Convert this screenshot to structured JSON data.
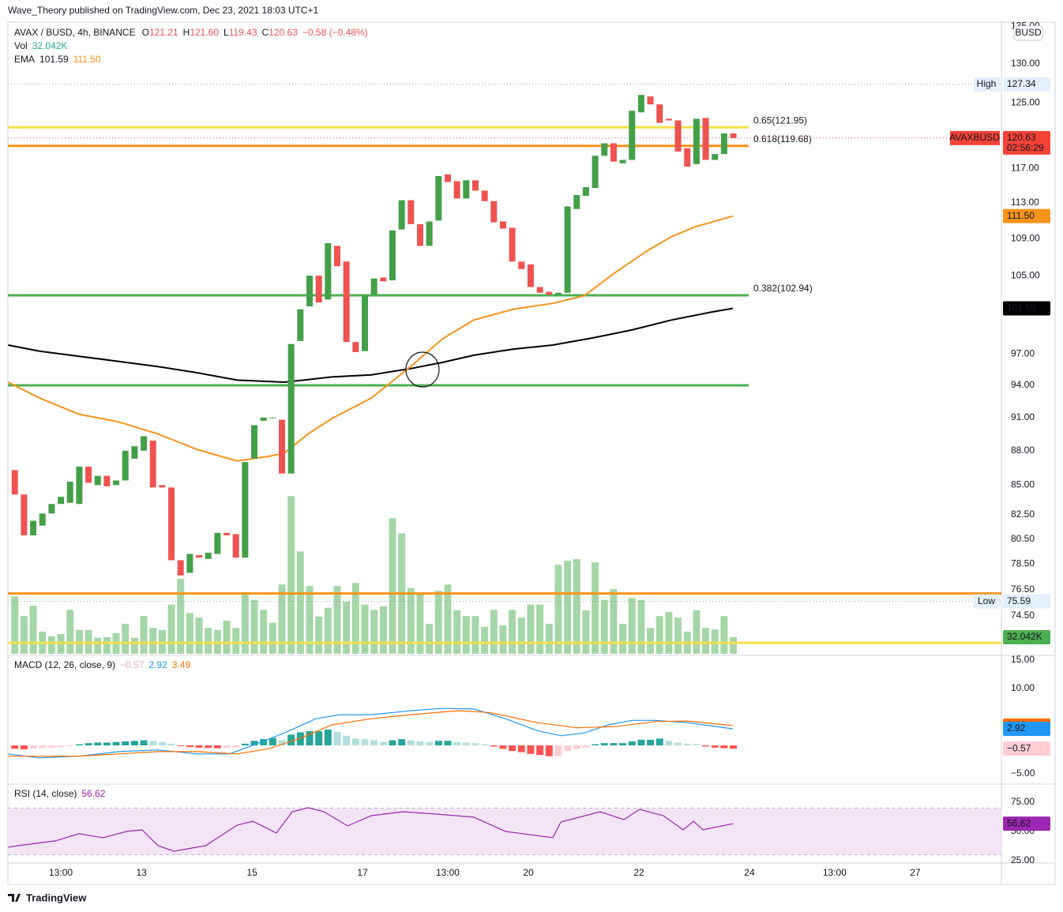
{
  "header": {
    "publisher": "Wave_Theory published on TradingView.com, Dec 23, 2021 18:03 UTC+1",
    "currency": "BUSD",
    "footer": "TradingView"
  },
  "chart_data": [
    {
      "type": "candlestick",
      "legend": {
        "symbol": "AVAX / BUSD, 4h, BINANCE",
        "ohlc": [
          {
            "key": "O",
            "value": "121.21"
          },
          {
            "key": "H",
            "value": "121.60"
          },
          {
            "key": "L",
            "value": "119.43"
          },
          {
            "key": "C",
            "value": "120.63"
          }
        ],
        "change": "−0.58 (−0.48%)"
      },
      "log_scale": true,
      "grid": false,
      "up_color": "#43a047",
      "down_color": "#ef5350",
      "xlim": [
        -10,
        421.4
      ],
      "xticks": [
        {
          "value": 13,
          "label": "13:00"
        },
        {
          "value": 48,
          "label": "13"
        },
        {
          "value": 96,
          "label": "15"
        },
        {
          "value": 144,
          "label": "17"
        },
        {
          "value": 181,
          "label": "13:00"
        },
        {
          "value": 216,
          "label": "20"
        },
        {
          "value": 264,
          "label": "22"
        },
        {
          "value": 312,
          "label": "24"
        },
        {
          "value": 349,
          "label": "13:00"
        },
        {
          "value": 384,
          "label": "27"
        }
      ],
      "ylim": [
        71.7,
        135.6
      ],
      "yticks": [
        {
          "value": 135,
          "label": "135.00"
        },
        {
          "value": 130,
          "label": "130.00"
        },
        {
          "value": 125,
          "label": "125.00"
        },
        {
          "value": 117,
          "label": "117.00"
        },
        {
          "value": 113,
          "label": "113.00"
        },
        {
          "value": 109,
          "label": "109.00"
        },
        {
          "value": 105,
          "label": "105.00"
        },
        {
          "value": 97,
          "label": "97.00"
        },
        {
          "value": 94,
          "label": "94.00"
        },
        {
          "value": 91,
          "label": "91.00"
        },
        {
          "value": 88,
          "label": "88.00"
        },
        {
          "value": 85,
          "label": "85.00"
        },
        {
          "value": 82.5,
          "label": "82.50"
        },
        {
          "value": 80.5,
          "label": "80.50"
        },
        {
          "value": 78.5,
          "label": "78.50"
        },
        {
          "value": 76.5,
          "label": "76.50"
        },
        {
          "value": 74.5,
          "label": "74.50"
        }
      ],
      "x": [
        -7,
        -3,
        1,
        5,
        9,
        13,
        17,
        21,
        25,
        29,
        33,
        37,
        41,
        45,
        49,
        53,
        57,
        61,
        65,
        69,
        73,
        77,
        81,
        85,
        89,
        93,
        97,
        101,
        105,
        109,
        113,
        117,
        121,
        125,
        129,
        133,
        137,
        141,
        145,
        149,
        153,
        157,
        161,
        165,
        169,
        173,
        177,
        181,
        185,
        189,
        193,
        197,
        201,
        205,
        209,
        213,
        217,
        221,
        225,
        229,
        233,
        237,
        241,
        245,
        249,
        253,
        257,
        261,
        265,
        269,
        273,
        277,
        281,
        285,
        289,
        293,
        297,
        301,
        305
      ],
      "open": [
        86.3,
        84.2,
        80.8,
        81.6,
        82.6,
        83.4,
        83.5,
        83.4,
        86.6,
        85,
        85.8,
        85,
        85.4,
        87.3,
        88,
        88.9,
        85,
        84.8,
        78.8,
        77.8,
        79.2,
        78.9,
        79.3,
        81,
        80.9,
        79,
        87.3,
        90.7,
        91,
        90.8,
        86,
        98.3,
        101.8,
        105,
        102.5,
        108.2,
        106.5,
        98.2,
        97.3,
        103,
        104.8,
        104.5,
        110,
        113.3,
        110.6,
        108.2,
        111,
        116.3,
        115.5,
        113.5,
        115.6,
        114.4,
        113.2,
        110.9,
        110.2,
        106.5,
        106.2,
        103.8,
        103.3,
        103,
        103.2,
        112.3,
        113.8,
        114.7,
        118.5,
        120,
        117.6,
        118,
        123.8,
        125.8,
        124.8,
        123,
        122.8,
        119.4,
        117.5,
        123.1,
        118,
        118.7,
        121.21
      ],
      "high": {
        "name": "High",
        "value": 127.34
      },
      "low": {
        "name": "Low",
        "value": 75.59
      },
      "close": [
        84.2,
        80.8,
        82,
        82.6,
        83.4,
        84,
        85.3,
        86.6,
        85.2,
        85.8,
        84.9,
        85.4,
        88,
        88.4,
        89.3,
        84.8,
        84.8,
        78.8,
        77.6,
        79.3,
        79,
        79.4,
        81,
        80.8,
        79,
        87,
        90.3,
        91,
        91,
        86,
        98,
        101.5,
        105,
        102.2,
        108.5,
        106,
        98.2,
        97.2,
        103,
        104.7,
        104.4,
        109.9,
        113.3,
        110.6,
        108.2,
        110.9,
        116.1,
        115.4,
        113.5,
        115.6,
        114.4,
        113.2,
        110.8,
        110.1,
        106.5,
        105.7,
        103.8,
        103.2,
        103,
        103.2,
        112.6,
        113.9,
        114.8,
        118.5,
        120,
        117.8,
        118,
        124,
        126,
        124.8,
        122.5,
        122.8,
        119,
        117.2,
        123,
        118,
        118.7,
        121.2,
        120.63
      ],
      "volume": {
        "name": "Vol",
        "color": "#a5d6a7",
        "badge_color": "#4caf50",
        "ylim": [
          0,
          400000
        ],
        "last_label": "32.042K",
        "values": [
          111000,
          73000,
          93000,
          43000,
          34000,
          38000,
          85000,
          46000,
          46000,
          31000,
          32000,
          40000,
          58000,
          31000,
          73000,
          50000,
          46000,
          95000,
          145000,
          79000,
          70000,
          50000,
          46000,
          64000,
          50000,
          119000,
          104000,
          85000,
          60000,
          134000,
          305000,
          198000,
          131000,
          72000,
          89000,
          131000,
          101000,
          137000,
          95000,
          85000,
          92000,
          262000,
          233000,
          127000,
          116000,
          58000,
          122000,
          134000,
          84000,
          73000,
          73000,
          52000,
          85000,
          55000,
          85000,
          70000,
          95000,
          95000,
          58000,
          172000,
          180000,
          183000,
          84000,
          177000,
          104000,
          125000,
          58000,
          108000,
          104000,
          50000,
          73000,
          81000,
          70000,
          43000,
          84000,
          50000,
          47000,
          73000,
          32042
        ]
      },
      "ema": {
        "name": "EMA",
        "series": [
          {
            "color": "#000000",
            "x": [
              -9.9,
              3.8,
              20.9,
              38.1,
              55.2,
              72.3,
              89.5,
              110.1,
              130.6,
              147.8,
              164.9,
              178.6,
              192.3,
              209.5,
              226.6,
              243.8,
              260.9,
              278.1,
              295.2,
              304.8
            ],
            "values": [
              97.9,
              97.3,
              96.8,
              96.3,
              95.8,
              95.2,
              94.5,
              94.3,
              94.8,
              95.0,
              95.6,
              96.2,
              96.9,
              97.5,
              97.9,
              98.6,
              99.4,
              100.4,
              101.2,
              101.59
            ]
          },
          {
            "color": "#f7931a",
            "last_label": "111.50",
            "x": [
              -9.9,
              3.8,
              20.9,
              38.1,
              55.2,
              72.3,
              89.5,
              103.2,
              110.1,
              120.3,
              130.6,
              147.8,
              164.9,
              178.6,
              192.3,
              209.5,
              226.6,
              240.3,
              254.1,
              267.8,
              278.1,
              288.3,
              304.8
            ],
            "values": [
              94.3,
              92.8,
              91.3,
              90.6,
              89.5,
              88.1,
              87.1,
              87.5,
              87.8,
              89.5,
              90.9,
              92.8,
              95.8,
              98.5,
              100.4,
              101.5,
              102.1,
              102.9,
              105.4,
              107.7,
              109.2,
              110.3,
              111.5
            ]
          }
        ]
      },
      "levels": [
        {
          "label": "0.65(121.95)",
          "value": 121.95,
          "color": "#f5e04a"
        },
        {
          "label": "0.618(119.68)",
          "value": 119.68,
          "color": "#f7931a"
        },
        {
          "label": "0.382(102.94)",
          "value": 102.94,
          "color": "#4caf50"
        },
        {
          "value": 94.0,
          "color": "#4caf50"
        },
        {
          "value": 76.2,
          "color": "#f7931a",
          "extended": true
        },
        {
          "value": 72.5,
          "color": "#f5e04a",
          "extended": true
        }
      ],
      "last": {
        "name": "AVAXBUSD",
        "value": 120.63,
        "countdown": "02:56:29",
        "color": "#f44336"
      }
    },
    {
      "type": "macd",
      "title": "MACD (12, 26, close, 9)",
      "ylim": [
        -6.39,
        15.56
      ],
      "yticks": [
        {
          "value": 15,
          "label": "15.00"
        },
        {
          "value": 10,
          "label": "10.00"
        },
        {
          "value": -5,
          "label": "−5.00"
        }
      ],
      "histogram": {
        "colors": [
          "#26a69a",
          "#b2dfdb",
          "#ffcdd2",
          "#ff5252"
        ],
        "last_label": "−0.57",
        "values": [
          -0.6,
          -0.7,
          -0.6,
          -0.5,
          -0.4,
          -0.3,
          -0.2,
          0.2,
          0.4,
          0.5,
          0.5,
          0.6,
          0.7,
          0.8,
          0.9,
          0.8,
          0.6,
          0.3,
          -0.1,
          -0.3,
          -0.4,
          -0.45,
          -0.5,
          -0.4,
          -0.35,
          0.3,
          0.8,
          1.1,
          1.3,
          0.9,
          1.9,
          2.3,
          2.5,
          2.5,
          2.8,
          2.4,
          1.7,
          1.2,
          1.1,
          0.9,
          0.6,
          0.9,
          1.1,
          0.9,
          0.7,
          0.6,
          0.8,
          0.8,
          0.6,
          0.5,
          0.4,
          0.2,
          -0.2,
          -0.6,
          -1.0,
          -1.2,
          -1.5,
          -1.7,
          -1.9,
          -1.8,
          -1.0,
          -0.6,
          -0.4,
          0.2,
          0.4,
          0.4,
          0.4,
          0.7,
          1.0,
          1.0,
          1.2,
          0.8,
          0.5,
          0.3,
          0.2,
          -0.2,
          -0.4,
          -0.5,
          -0.57
        ]
      },
      "series": [
        {
          "color": "#2196f3",
          "x": [
            -9.9,
            3.8,
            20.9,
            38.1,
            55.2,
            72.3,
            86.1,
            96.3,
            110.1,
            123.8,
            134.1,
            147.8,
            164.9,
            178.6,
            192.3,
            206.1,
            219.8,
            230.1,
            240.3,
            250.6,
            260.9,
            271.2,
            284.9,
            304.8
          ],
          "values": [
            -1.5,
            -2.2,
            -1.9,
            -1.1,
            -0.8,
            -1.5,
            -1.5,
            0,
            2.2,
            4.7,
            5.4,
            5.4,
            6.1,
            6.5,
            6.4,
            4.7,
            2.6,
            1.7,
            2.2,
            3.6,
            4.4,
            4.4,
            4.0,
            2.92
          ]
        },
        {
          "color": "#ff6d00",
          "x": [
            -9.9,
            20.9,
            38.1,
            55.2,
            72.3,
            89.5,
            103.2,
            117,
            130.6,
            147.8,
            164.9,
            185.5,
            199.2,
            219.8,
            236.9,
            254.1,
            271.2,
            284.9,
            304.8
          ],
          "values": [
            -1.9,
            -1.9,
            -1.5,
            -1.1,
            -1.1,
            -1.5,
            -0.6,
            1.25,
            3.6,
            4.7,
            5.4,
            6.1,
            5.8,
            4.0,
            3.1,
            3.3,
            4.2,
            4.3,
            3.49
          ]
        }
      ]
    },
    {
      "type": "line",
      "title": "RSI (14, close)",
      "color": "#9c27b0",
      "band": [
        30,
        70
      ],
      "band_color": "#f3e5f5",
      "ylim": [
        23.6,
        89.2
      ],
      "yticks": [
        {
          "value": 75,
          "label": "75.00"
        },
        {
          "value": 50,
          "label": "50.00"
        },
        {
          "value": 25,
          "label": "25.00"
        }
      ],
      "x": [
        -9.9,
        -3.1,
        10.6,
        20.9,
        31.2,
        41.5,
        48.3,
        55.2,
        62.1,
        75.8,
        89.5,
        96.3,
        106.6,
        113.5,
        120.3,
        127.2,
        137.5,
        147.8,
        161.5,
        175.2,
        192.3,
        206.1,
        226.6,
        230.1,
        247.2,
        257.5,
        264.3,
        274.6,
        283.2,
        287.7,
        291.8,
        304.8
      ],
      "values": [
        36.5,
        38.5,
        41.9,
        48,
        44.6,
        50,
        51.4,
        37.8,
        33.1,
        37.8,
        55.4,
        58.8,
        48.6,
        66.9,
        70.3,
        66.9,
        54.7,
        63.5,
        66.9,
        64.9,
        62.2,
        50,
        44.6,
        58.1,
        66.9,
        60.1,
        68.9,
        63.5,
        51.4,
        58.8,
        51.4,
        56.62
      ]
    }
  ]
}
